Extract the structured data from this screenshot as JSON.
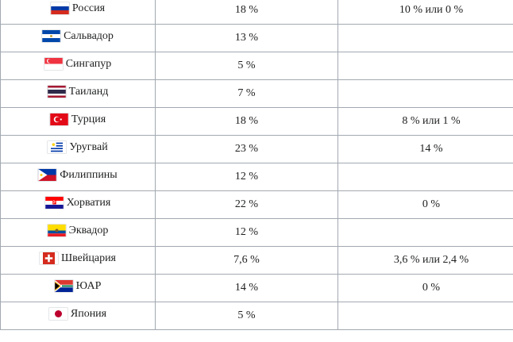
{
  "table": {
    "rows": [
      {
        "country": "Россия",
        "flag_icon": "russia-flag-icon",
        "standard_rate": "18 %",
        "reduced_rate": "10 % или 0 %"
      },
      {
        "country": "Сальвадор",
        "flag_icon": "el-salvador-flag-icon",
        "standard_rate": "13 %",
        "reduced_rate": ""
      },
      {
        "country": "Сингапур",
        "flag_icon": "singapore-flag-icon",
        "standard_rate": "5 %",
        "reduced_rate": ""
      },
      {
        "country": "Таиланд",
        "flag_icon": "thailand-flag-icon",
        "standard_rate": "7 %",
        "reduced_rate": ""
      },
      {
        "country": "Турция",
        "flag_icon": "turkey-flag-icon",
        "standard_rate": "18 %",
        "reduced_rate": "8 % или 1 %"
      },
      {
        "country": "Уругвай",
        "flag_icon": "uruguay-flag-icon",
        "standard_rate": "23 %",
        "reduced_rate": "14 %"
      },
      {
        "country": "Филиппины",
        "flag_icon": "philippines-flag-icon",
        "standard_rate": "12 %",
        "reduced_rate": ""
      },
      {
        "country": "Хорватия",
        "flag_icon": "croatia-flag-icon",
        "standard_rate": "22 %",
        "reduced_rate": "0 %"
      },
      {
        "country": "Эквадор",
        "flag_icon": "ecuador-flag-icon",
        "standard_rate": "12 %",
        "reduced_rate": ""
      },
      {
        "country": "Швейцария",
        "flag_icon": "switzerland-flag-icon",
        "standard_rate": "7,6 %",
        "reduced_rate": "3,6 % или 2,4 %"
      },
      {
        "country": "ЮАР",
        "flag_icon": "south-africa-flag-icon",
        "standard_rate": "14 %",
        "reduced_rate": "0 %"
      },
      {
        "country": "Япония",
        "flag_icon": "japan-flag-icon",
        "standard_rate": "5 %",
        "reduced_rate": ""
      }
    ]
  }
}
